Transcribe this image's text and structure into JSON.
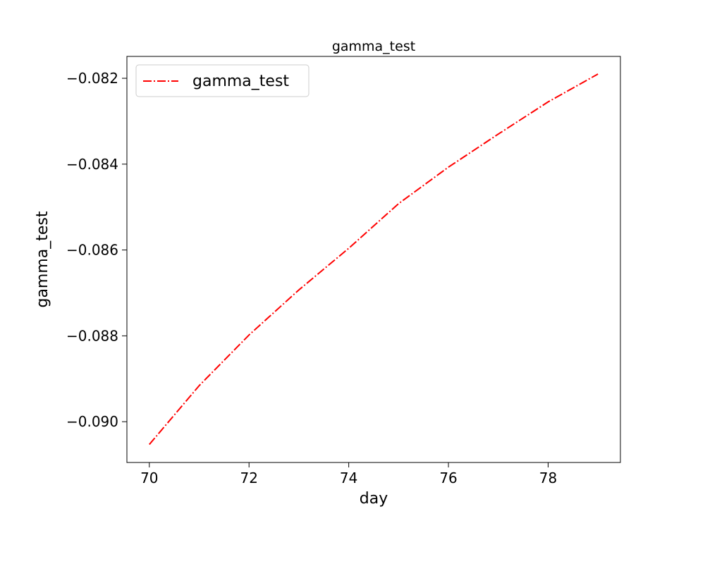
{
  "chart_data": {
    "type": "line",
    "title": "gamma_test",
    "xlabel": "day",
    "ylabel": "gamma_test",
    "xlim": [
      69.55,
      79.45
    ],
    "ylim": [
      -0.09095,
      -0.08149
    ],
    "xticks": [
      70,
      72,
      74,
      76,
      78
    ],
    "xtick_labels": [
      "70",
      "72",
      "74",
      "76",
      "78"
    ],
    "yticks": [
      -0.09,
      -0.088,
      -0.086,
      -0.084,
      -0.082
    ],
    "ytick_labels": [
      "−0.090",
      "−0.088",
      "−0.086",
      "−0.084",
      "−0.082"
    ],
    "grid": false,
    "legend_position": "top-left",
    "x": [
      70,
      71,
      72,
      73,
      74,
      75,
      76,
      77,
      78,
      79
    ],
    "series": [
      {
        "name": "gamma_test",
        "color": "#ff0000",
        "line_style": "dash-dot",
        "values": [
          -0.09053,
          -0.08916,
          -0.08798,
          -0.08693,
          -0.08596,
          -0.08492,
          -0.08407,
          -0.0833,
          -0.08255,
          -0.0819
        ]
      }
    ]
  }
}
